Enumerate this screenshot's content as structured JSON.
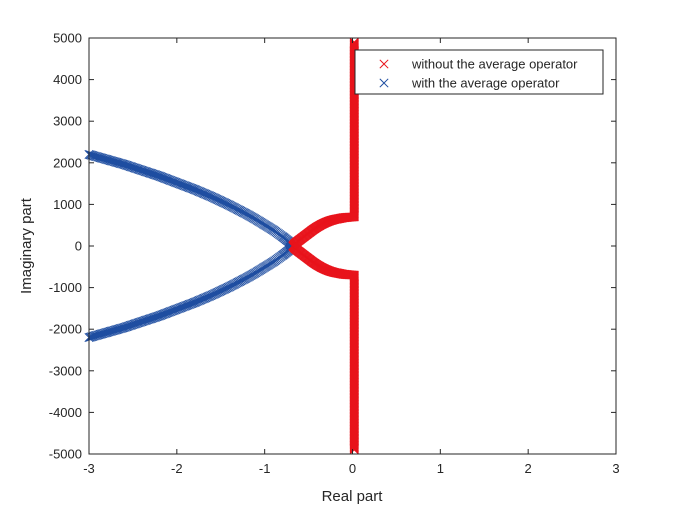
{
  "chart_data": {
    "type": "scatter",
    "xlabel": "Real part",
    "ylabel": "Imaginary part",
    "xlim": [
      -3,
      3
    ],
    "ylim": [
      -5000,
      5000
    ],
    "xticks": [
      -3,
      -2,
      -1,
      0,
      1,
      2,
      3
    ],
    "xtick_labels": [
      "-3",
      "-2",
      "-1",
      "0",
      "1",
      "2",
      "3"
    ],
    "yticks": [
      5000,
      4000,
      3000,
      2000,
      1000,
      0,
      -1000,
      -2000,
      -3000,
      -4000,
      -5000
    ],
    "ytick_labels": [
      "5000",
      "4000",
      "3000",
      "2000",
      "1000",
      "0",
      "-1000",
      "-2000",
      "-3000",
      "-4000",
      "-5000"
    ],
    "grid": false,
    "legend_position": "top-right",
    "marker": "x",
    "series": [
      {
        "name": "without the average operator",
        "color": "#e8141c",
        "points": [
          [
            0.02,
            4900
          ],
          [
            0.02,
            4800
          ],
          [
            0.02,
            4700
          ],
          [
            0.02,
            4600
          ],
          [
            0.02,
            4500
          ],
          [
            0.02,
            4400
          ],
          [
            0.02,
            4300
          ],
          [
            0.02,
            4200
          ],
          [
            0.02,
            4100
          ],
          [
            0.02,
            4000
          ],
          [
            0.02,
            3900
          ],
          [
            0.02,
            3800
          ],
          [
            0.02,
            3700
          ],
          [
            0.02,
            3600
          ],
          [
            0.02,
            3500
          ],
          [
            0.02,
            3400
          ],
          [
            0.02,
            3300
          ],
          [
            0.02,
            3200
          ],
          [
            0.02,
            3100
          ],
          [
            0.02,
            3000
          ],
          [
            0.02,
            2900
          ],
          [
            0.02,
            2800
          ],
          [
            0.02,
            2700
          ],
          [
            0.02,
            2600
          ],
          [
            0.02,
            2500
          ],
          [
            0.02,
            2400
          ],
          [
            0.02,
            2300
          ],
          [
            0.02,
            2200
          ],
          [
            0.02,
            2100
          ],
          [
            0.02,
            2000
          ],
          [
            0.02,
            1900
          ],
          [
            0.02,
            1800
          ],
          [
            0.02,
            1700
          ],
          [
            0.02,
            1600
          ],
          [
            0.02,
            1500
          ],
          [
            0.02,
            1400
          ],
          [
            0.02,
            1300
          ],
          [
            0.02,
            1200
          ],
          [
            0.02,
            1100
          ],
          [
            0.02,
            1000
          ],
          [
            0.02,
            900
          ],
          [
            0.02,
            800
          ],
          [
            0.02,
            700
          ],
          [
            -0.05,
            690
          ],
          [
            -0.1,
            680
          ],
          [
            -0.15,
            660
          ],
          [
            -0.2,
            640
          ],
          [
            -0.25,
            610
          ],
          [
            -0.3,
            570
          ],
          [
            -0.35,
            520
          ],
          [
            -0.4,
            460
          ],
          [
            -0.45,
            390
          ],
          [
            -0.5,
            310
          ],
          [
            -0.55,
            230
          ],
          [
            -0.6,
            150
          ],
          [
            -0.65,
            70
          ],
          [
            -0.68,
            0
          ],
          [
            -0.65,
            -70
          ],
          [
            -0.6,
            -150
          ],
          [
            -0.55,
            -230
          ],
          [
            -0.5,
            -310
          ],
          [
            -0.45,
            -390
          ],
          [
            -0.4,
            -460
          ],
          [
            -0.35,
            -520
          ],
          [
            -0.3,
            -570
          ],
          [
            -0.25,
            -610
          ],
          [
            -0.2,
            -640
          ],
          [
            -0.15,
            -660
          ],
          [
            -0.1,
            -680
          ],
          [
            -0.05,
            -690
          ],
          [
            0.02,
            -700
          ],
          [
            0.02,
            -800
          ],
          [
            0.02,
            -900
          ],
          [
            0.02,
            -1000
          ],
          [
            0.02,
            -1100
          ],
          [
            0.02,
            -1200
          ],
          [
            0.02,
            -1300
          ],
          [
            0.02,
            -1400
          ],
          [
            0.02,
            -1500
          ],
          [
            0.02,
            -1600
          ],
          [
            0.02,
            -1700
          ],
          [
            0.02,
            -1800
          ],
          [
            0.02,
            -1900
          ],
          [
            0.02,
            -2000
          ],
          [
            0.02,
            -2100
          ],
          [
            0.02,
            -2200
          ],
          [
            0.02,
            -2300
          ],
          [
            0.02,
            -2400
          ],
          [
            0.02,
            -2500
          ],
          [
            0.02,
            -2600
          ],
          [
            0.02,
            -2700
          ],
          [
            0.02,
            -2800
          ],
          [
            0.02,
            -2900
          ],
          [
            0.02,
            -3000
          ],
          [
            0.02,
            -3100
          ],
          [
            0.02,
            -3200
          ],
          [
            0.02,
            -3300
          ],
          [
            0.02,
            -3400
          ],
          [
            0.02,
            -3500
          ],
          [
            0.02,
            -3600
          ],
          [
            0.02,
            -3700
          ],
          [
            0.02,
            -3800
          ],
          [
            0.02,
            -3900
          ],
          [
            0.02,
            -4000
          ],
          [
            0.02,
            -4100
          ],
          [
            0.02,
            -4200
          ],
          [
            0.02,
            -4300
          ],
          [
            0.02,
            -4400
          ],
          [
            0.02,
            -4500
          ],
          [
            0.02,
            -4600
          ],
          [
            0.02,
            -4700
          ],
          [
            0.02,
            -4800
          ],
          [
            0.02,
            -4900
          ]
        ]
      },
      {
        "name": "with the average operator",
        "color": "#1f4ea1",
        "points": [
          [
            -3.0,
            2200
          ],
          [
            -2.9,
            2140
          ],
          [
            -2.8,
            2080
          ],
          [
            -2.7,
            2020
          ],
          [
            -2.6,
            1960
          ],
          [
            -2.5,
            1890
          ],
          [
            -2.4,
            1820
          ],
          [
            -2.3,
            1750
          ],
          [
            -2.2,
            1680
          ],
          [
            -2.1,
            1600
          ],
          [
            -2.0,
            1520
          ],
          [
            -1.9,
            1440
          ],
          [
            -1.8,
            1360
          ],
          [
            -1.7,
            1270
          ],
          [
            -1.6,
            1180
          ],
          [
            -1.5,
            1080
          ],
          [
            -1.4,
            980
          ],
          [
            -1.3,
            870
          ],
          [
            -1.2,
            760
          ],
          [
            -1.1,
            640
          ],
          [
            -1.0,
            510
          ],
          [
            -0.9,
            380
          ],
          [
            -0.8,
            230
          ],
          [
            -0.72,
            100
          ],
          [
            -0.7,
            0
          ],
          [
            -0.72,
            -100
          ],
          [
            -0.8,
            -230
          ],
          [
            -0.9,
            -380
          ],
          [
            -1.0,
            -510
          ],
          [
            -1.1,
            -640
          ],
          [
            -1.2,
            -760
          ],
          [
            -1.3,
            -870
          ],
          [
            -1.4,
            -980
          ],
          [
            -1.5,
            -1080
          ],
          [
            -1.6,
            -1180
          ],
          [
            -1.7,
            -1270
          ],
          [
            -1.8,
            -1360
          ],
          [
            -1.9,
            -1440
          ],
          [
            -2.0,
            -1520
          ],
          [
            -2.1,
            -1600
          ],
          [
            -2.2,
            -1680
          ],
          [
            -2.3,
            -1750
          ],
          [
            -2.4,
            -1820
          ],
          [
            -2.5,
            -1890
          ],
          [
            -2.6,
            -1960
          ],
          [
            -2.7,
            -2020
          ],
          [
            -2.8,
            -2080
          ],
          [
            -2.9,
            -2140
          ],
          [
            -3.0,
            -2200
          ]
        ]
      }
    ]
  }
}
